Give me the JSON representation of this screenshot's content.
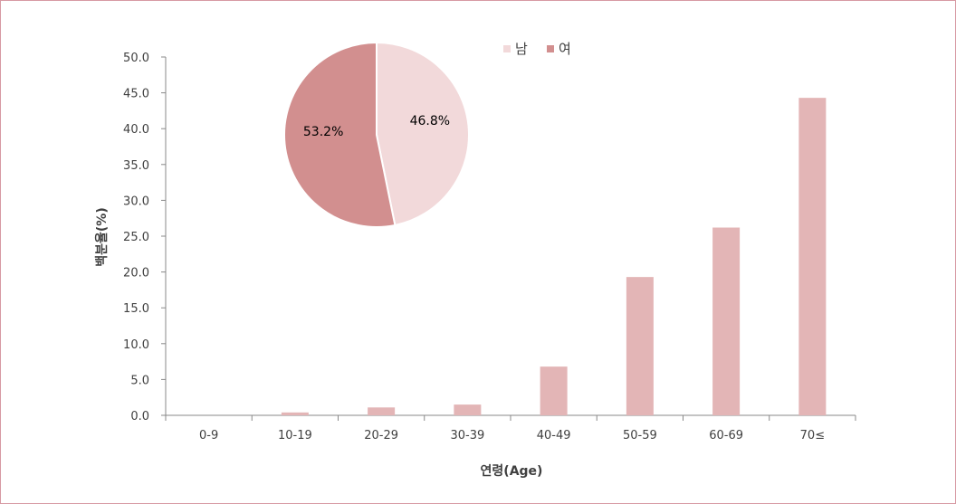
{
  "chart_data": [
    {
      "type": "bar",
      "categories": [
        "0-9",
        "10-19",
        "20-29",
        "30-39",
        "40-49",
        "50-59",
        "60-69",
        "70≤"
      ],
      "values": [
        0.0,
        0.4,
        1.1,
        1.5,
        6.8,
        19.3,
        26.2,
        44.3
      ],
      "y_ticks": [
        "0.0",
        "5.0",
        "10.0",
        "15.0",
        "20.0",
        "25.0",
        "30.0",
        "35.0",
        "40.0",
        "45.0",
        "50.0"
      ],
      "ylim": [
        0,
        50
      ],
      "xlabel": "연령(Age)",
      "ylabel": "백분율(%)",
      "grid": false,
      "color": "#e3b5b6"
    },
    {
      "type": "pie",
      "labels": [
        "남",
        "여"
      ],
      "values": [
        46.8,
        53.2
      ],
      "value_labels": [
        "46.8%",
        "53.2%"
      ],
      "colors": [
        "#f2d9da",
        "#d28f8f"
      ],
      "legend": "top"
    }
  ]
}
